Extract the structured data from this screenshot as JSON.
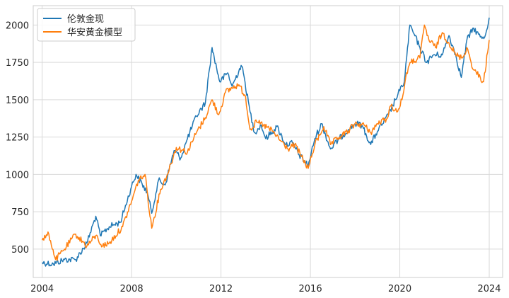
{
  "chart_data": {
    "type": "line",
    "title": "",
    "xlabel": "",
    "ylabel": "",
    "xlim": [
      2003.6,
      2024.6
    ],
    "ylim": [
      310,
      2130
    ],
    "grid": true,
    "legend_position": "top-left",
    "x_ticks": [
      2004,
      2008,
      2012,
      2016,
      2020,
      2024
    ],
    "y_ticks": [
      500,
      750,
      1000,
      1250,
      1500,
      1750,
      2000
    ],
    "series": [
      {
        "name": "伦敦金现",
        "color": "#1f77b4",
        "x": [
          2004.0,
          2004.5,
          2005.0,
          2005.5,
          2006.0,
          2006.4,
          2006.6,
          2007.0,
          2007.5,
          2008.0,
          2008.2,
          2008.7,
          2008.9,
          2009.2,
          2009.5,
          2009.9,
          2010.2,
          2010.5,
          2010.9,
          2011.3,
          2011.6,
          2011.7,
          2011.95,
          2012.3,
          2012.5,
          2012.9,
          2013.0,
          2013.3,
          2013.5,
          2013.8,
          2014.0,
          2014.5,
          2014.9,
          2015.2,
          2015.5,
          2015.9,
          2016.2,
          2016.5,
          2016.9,
          2017.3,
          2017.7,
          2018.0,
          2018.3,
          2018.7,
          2019.0,
          2019.5,
          2019.8,
          2020.0,
          2020.2,
          2020.45,
          2020.6,
          2020.9,
          2021.2,
          2021.5,
          2021.9,
          2022.2,
          2022.5,
          2022.75,
          2023.0,
          2023.3,
          2023.6,
          2023.8,
          2024.0
        ],
        "values": [
          410,
          400,
          430,
          430,
          540,
          720,
          590,
          650,
          680,
          920,
          1000,
          880,
          740,
          960,
          930,
          1160,
          1110,
          1240,
          1390,
          1480,
          1850,
          1780,
          1620,
          1680,
          1590,
          1730,
          1680,
          1420,
          1280,
          1330,
          1240,
          1320,
          1200,
          1210,
          1130,
          1060,
          1240,
          1340,
          1170,
          1240,
          1300,
          1340,
          1330,
          1200,
          1290,
          1400,
          1500,
          1560,
          1620,
          2000,
          1950,
          1850,
          1750,
          1800,
          1800,
          1930,
          1800,
          1650,
          1900,
          1980,
          1920,
          1920,
          2050
        ]
      },
      {
        "name": "华安黄金模型",
        "color": "#ff7f0e",
        "x": [
          2004.0,
          2004.3,
          2004.6,
          2005.0,
          2005.5,
          2006.0,
          2006.4,
          2006.7,
          2007.0,
          2007.6,
          2008.0,
          2008.3,
          2008.6,
          2008.9,
          2009.3,
          2009.6,
          2010.0,
          2010.5,
          2010.9,
          2011.3,
          2011.6,
          2011.9,
          2012.2,
          2012.5,
          2012.8,
          2013.1,
          2013.3,
          2013.6,
          2013.9,
          2014.3,
          2014.7,
          2015.0,
          2015.3,
          2015.6,
          2015.9,
          2016.2,
          2016.6,
          2016.9,
          2017.3,
          2017.7,
          2018.0,
          2018.4,
          2018.7,
          2019.0,
          2019.4,
          2019.6,
          2019.9,
          2020.1,
          2020.3,
          2020.5,
          2020.9,
          2021.1,
          2021.3,
          2021.6,
          2021.9,
          2022.2,
          2022.5,
          2022.8,
          2023.0,
          2023.3,
          2023.6,
          2023.75,
          2024.0
        ],
        "values": [
          560,
          600,
          430,
          500,
          600,
          520,
          590,
          520,
          540,
          650,
          820,
          960,
          1000,
          640,
          900,
          1000,
          1180,
          1150,
          1280,
          1380,
          1500,
          1400,
          1550,
          1580,
          1600,
          1520,
          1300,
          1350,
          1330,
          1290,
          1220,
          1170,
          1200,
          1120,
          1040,
          1200,
          1320,
          1200,
          1250,
          1290,
          1340,
          1330,
          1280,
          1340,
          1370,
          1460,
          1420,
          1500,
          1680,
          1750,
          1780,
          2000,
          1900,
          1850,
          1950,
          1880,
          1800,
          1780,
          1850,
          1700,
          1650,
          1620,
          1900
        ]
      }
    ]
  }
}
